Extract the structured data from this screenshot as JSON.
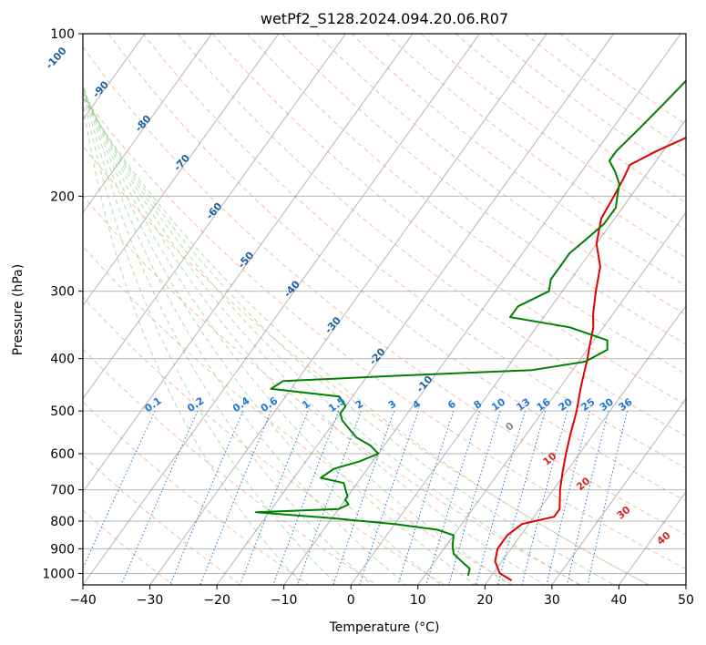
{
  "chart_data": {
    "type": "line",
    "title": "wetPf2_S128.2024.094.20.06.R07",
    "xlabel": "Temperature (°C)",
    "ylabel": "Pressure (hPa)",
    "xlim": [
      -40,
      50
    ],
    "ylim": [
      1050,
      100
    ],
    "y_scale": "log",
    "grid": true,
    "x_ticks": [
      "−40",
      "−30",
      "−20",
      "−10",
      "0",
      "10",
      "20",
      "30",
      "40",
      "50"
    ],
    "x_tick_values": [
      -40,
      -30,
      -20,
      -10,
      0,
      10,
      20,
      30,
      40,
      50
    ],
    "y_ticks": [
      "100",
      "200",
      "300",
      "400",
      "500",
      "600",
      "700",
      "800",
      "900",
      "1000"
    ],
    "y_tick_values": [
      100,
      200,
      300,
      400,
      500,
      600,
      700,
      800,
      900,
      1000
    ],
    "colors": {
      "temperature": "#e00000",
      "dewpoint": "#008000",
      "isotherm": "#9a9a9a",
      "dry_adiabat": "#f4a582",
      "moist_adiabat": "#8fcf8f",
      "mixing_ratio": "#1f77d4",
      "isotherm_label": "#1f5f9f",
      "moist_label": "#d62728"
    },
    "series": [
      {
        "key": "temperature",
        "points": [
          [
            23.5,
            1030
          ],
          [
            21,
            1000
          ],
          [
            19,
            950
          ],
          [
            18,
            900
          ],
          [
            18,
            850
          ],
          [
            19,
            810
          ],
          [
            23,
            785
          ],
          [
            23,
            760
          ],
          [
            21,
            700
          ],
          [
            19.5,
            650
          ],
          [
            18,
            600
          ],
          [
            16.5,
            550
          ],
          [
            15,
            500
          ],
          [
            13,
            450
          ],
          [
            11,
            400
          ],
          [
            10,
            380
          ],
          [
            8.5,
            350
          ],
          [
            7,
            330
          ],
          [
            5,
            300
          ],
          [
            3,
            270
          ],
          [
            0,
            245
          ],
          [
            -2,
            220
          ],
          [
            -2.5,
            200
          ],
          [
            -3,
            185
          ],
          [
            -3.5,
            175
          ],
          [
            -1,
            165
          ],
          [
            4,
            150
          ],
          [
            8,
            135
          ],
          [
            10,
            120
          ],
          [
            11,
            110
          ],
          [
            14,
            100
          ]
        ]
      },
      {
        "key": "dewpoint",
        "points": [
          [
            16.5,
            1010
          ],
          [
            16,
            980
          ],
          [
            14,
            950
          ],
          [
            12,
            920
          ],
          [
            11,
            890
          ],
          [
            10,
            850
          ],
          [
            7,
            830
          ],
          [
            0,
            810
          ],
          [
            -10,
            790
          ],
          [
            -22,
            770
          ],
          [
            -10,
            760
          ],
          [
            -9,
            745
          ],
          [
            -10,
            730
          ],
          [
            -10,
            720
          ],
          [
            -11,
            700
          ],
          [
            -12,
            680
          ],
          [
            -16,
            665
          ],
          [
            -15,
            640
          ],
          [
            -12,
            620
          ],
          [
            -10,
            600
          ],
          [
            -12,
            580
          ],
          [
            -15,
            560
          ],
          [
            -17,
            540
          ],
          [
            -19,
            520
          ],
          [
            -20,
            505
          ],
          [
            -20,
            490
          ],
          [
            -22,
            470
          ],
          [
            -33,
            455
          ],
          [
            -32,
            440
          ],
          [
            -15,
            430
          ],
          [
            4,
            420
          ],
          [
            11,
            405
          ],
          [
            13,
            385
          ],
          [
            12,
            370
          ],
          [
            5,
            350
          ],
          [
            -5,
            335
          ],
          [
            -5,
            320
          ],
          [
            -2,
            300
          ],
          [
            -3,
            285
          ],
          [
            -3,
            270
          ],
          [
            -3,
            255
          ],
          [
            -2,
            240
          ],
          [
            -1,
            225
          ],
          [
            -1,
            210
          ],
          [
            -2,
            200
          ],
          [
            -3,
            190
          ],
          [
            -5,
            180
          ],
          [
            -7,
            172
          ],
          [
            -7,
            165
          ],
          [
            -6,
            150
          ],
          [
            -5,
            135
          ],
          [
            -4,
            120
          ],
          [
            -2,
            110
          ],
          [
            0,
            100
          ]
        ]
      }
    ],
    "isotherm_labels": [
      "-100",
      "-90",
      "-80",
      "-70",
      "-60",
      "-50",
      "-40",
      "-30",
      "-20",
      "-10"
    ],
    "isotherm_label_values": [
      -100,
      -90,
      -80,
      -70,
      -60,
      -50,
      -40,
      -30,
      -20,
      -10
    ],
    "isotherm_label_pressures": [
      112,
      128,
      148,
      175,
      215,
      265,
      300,
      350,
      400,
      450
    ],
    "mixing_ratio_labels": [
      "0.1",
      "0.2",
      "0.4",
      "0.6",
      "1",
      "1.5",
      "2",
      "3",
      "4",
      "6",
      "8",
      "10",
      "13",
      "16",
      "20",
      "25",
      "30",
      "36"
    ],
    "mixing_ratio_values": [
      0.1,
      0.2,
      0.4,
      0.6,
      1,
      1.5,
      2,
      3,
      4,
      6,
      8,
      10,
      13,
      16,
      20,
      25,
      30,
      36
    ],
    "moist_adiabat_labels": [
      "0",
      "10",
      "20",
      "30",
      "40"
    ],
    "moist_adiabat_label_temps": [
      24,
      30,
      35,
      41,
      47
    ],
    "moist_adiabat_label_pressures": [
      540,
      620,
      690,
      780,
      870
    ]
  }
}
